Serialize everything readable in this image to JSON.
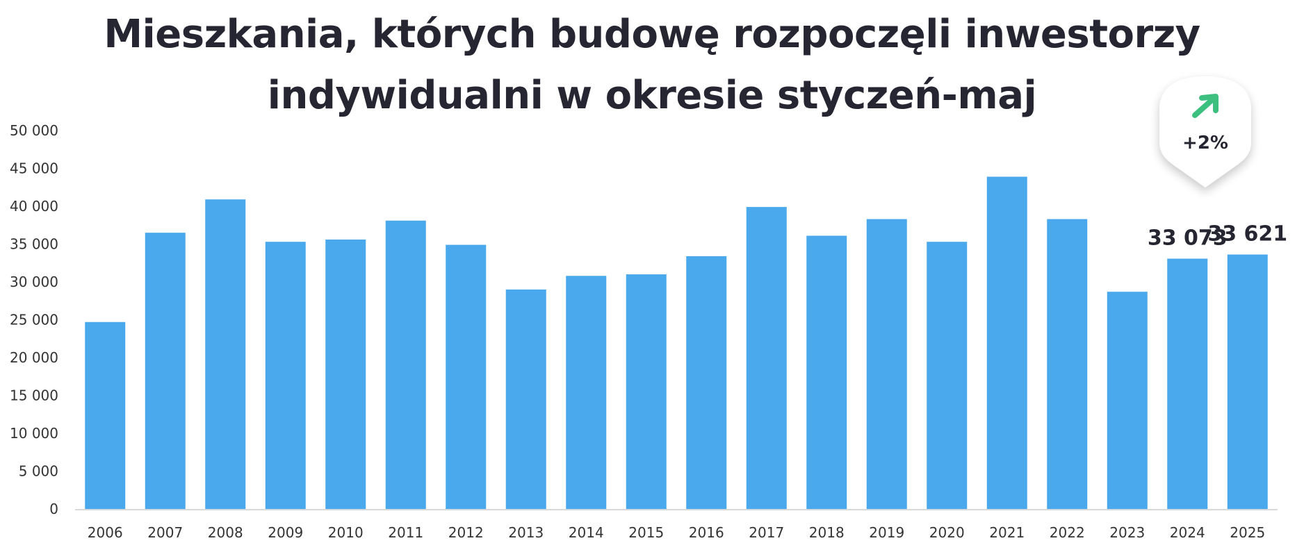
{
  "chart_data": {
    "type": "bar",
    "title_lines": [
      "Mieszkania, których budowę rozpoczęli inwestorzy",
      "indywidualni w okresie styczeń-maj"
    ],
    "categories": [
      "2006",
      "2007",
      "2008",
      "2009",
      "2010",
      "2011",
      "2012",
      "2013",
      "2014",
      "2015",
      "2016",
      "2017",
      "2018",
      "2019",
      "2020",
      "2021",
      "2022",
      "2023",
      "2024",
      "2025"
    ],
    "values": [
      24700,
      36500,
      40900,
      35300,
      35600,
      38100,
      34900,
      29000,
      30800,
      31000,
      33400,
      39900,
      36100,
      38300,
      35300,
      43900,
      38300,
      28700,
      33073,
      33621
    ],
    "ylim": [
      0,
      50000
    ],
    "yticks": [
      0,
      5000,
      10000,
      15000,
      20000,
      25000,
      30000,
      35000,
      40000,
      45000,
      50000
    ],
    "ytick_labels": [
      "0",
      "5 000",
      "10 000",
      "15 000",
      "20 000",
      "25 000",
      "30 000",
      "35 000",
      "40 000",
      "45 000",
      "50 000"
    ],
    "data_labels": [
      {
        "category": "2024",
        "text": "33 073"
      },
      {
        "category": "2025",
        "text": "33 621"
      }
    ],
    "annotation": {
      "text": "+2%",
      "icon": "arrow-up-right-icon",
      "icon_color": "#3dbf7f"
    },
    "bar_color": "#4aa9ec",
    "grid": false,
    "xlabel": "",
    "ylabel": ""
  }
}
